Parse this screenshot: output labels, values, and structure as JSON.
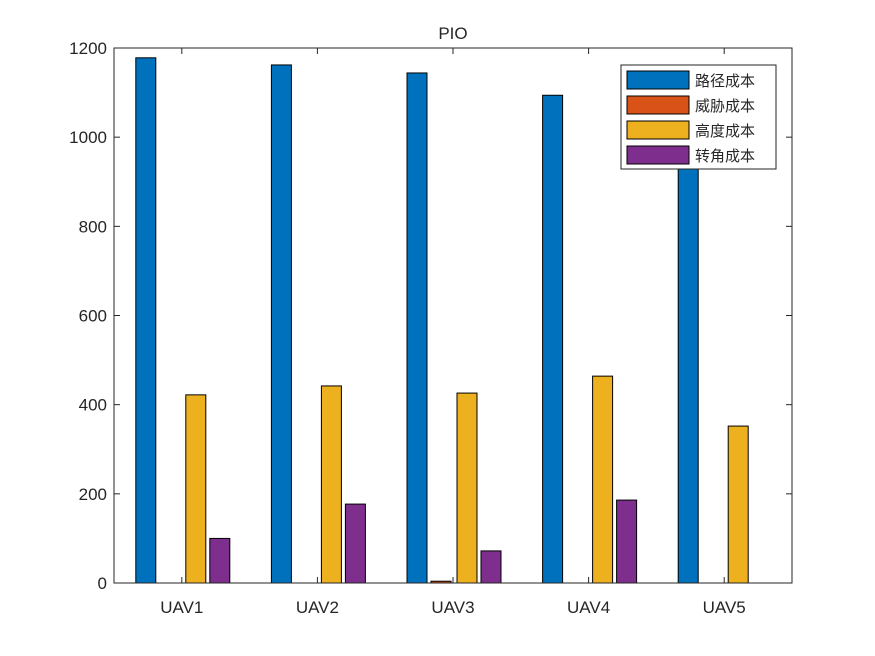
{
  "chart_data": {
    "type": "bar",
    "title": "PIO",
    "xlabel": "",
    "ylabel": "",
    "categories": [
      "UAV1",
      "UAV2",
      "UAV3",
      "UAV4",
      "UAV5"
    ],
    "ylim": [
      0,
      1200
    ],
    "yticks": [
      0,
      200,
      400,
      600,
      800,
      1000,
      1200
    ],
    "grid": false,
    "legend_position": "top-right",
    "series": [
      {
        "name": "路径成本",
        "color": "#0072BD",
        "values": [
          1178,
          1162,
          1144,
          1094,
          950
        ]
      },
      {
        "name": "威胁成本",
        "color": "#D95319",
        "values": [
          0,
          0,
          4,
          0,
          0
        ]
      },
      {
        "name": "高度成本",
        "color": "#EDB120",
        "values": [
          422,
          442,
          426,
          464,
          352
        ]
      },
      {
        "name": "转角成本",
        "color": "#7E2F8E",
        "values": [
          100,
          177,
          72,
          186,
          0
        ]
      }
    ]
  }
}
